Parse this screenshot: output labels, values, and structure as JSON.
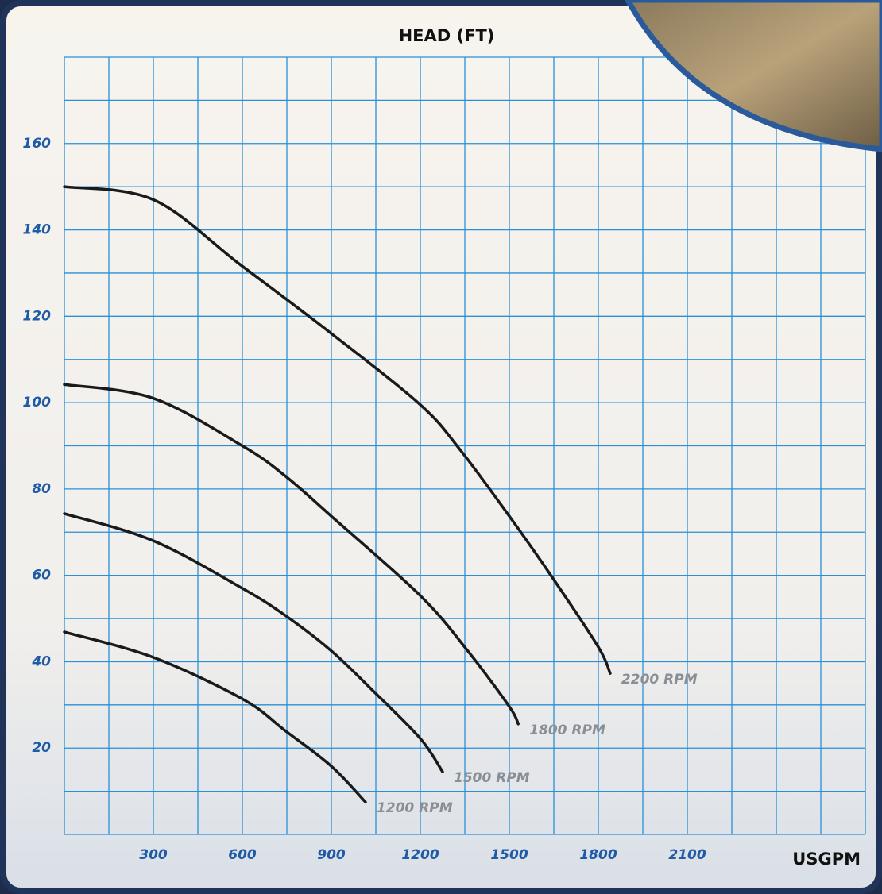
{
  "chart_data": {
    "type": "line",
    "title": "HEAD (FT)",
    "x_label": "USGPM",
    "xlim": [
      0,
      2700
    ],
    "ylim": [
      0,
      180
    ],
    "xticks": [
      300,
      600,
      900,
      1200,
      1500,
      1800,
      2100
    ],
    "yticks": [
      20,
      40,
      60,
      80,
      100,
      120,
      140,
      160
    ],
    "xgrid": [
      0,
      150,
      300,
      450,
      600,
      750,
      900,
      1050,
      1200,
      1350,
      1500,
      1650,
      1800,
      1950,
      2100,
      2250,
      2400,
      2550,
      2700
    ],
    "ygrid": [
      0,
      10,
      20,
      30,
      40,
      50,
      60,
      70,
      80,
      90,
      100,
      110,
      120,
      130,
      140,
      150,
      160,
      170,
      180
    ],
    "grid": true,
    "grid_color": "#2b8fd6",
    "series": [
      {
        "name": "2200 RPM",
        "color": "#1a1a1a",
        "x": [
          0,
          300,
          592,
          900,
          1200,
          1335,
          1500,
          1650,
          1800,
          1840
        ],
        "values": [
          150,
          147,
          132,
          116,
          99.5,
          89,
          73.7,
          59,
          43.4,
          37.3
        ]
      },
      {
        "name": "1800 RPM",
        "color": "#1a1a1a",
        "x": [
          0,
          300,
          600,
          745,
          900,
          1200,
          1360,
          1500,
          1530
        ],
        "values": [
          104.2,
          101,
          90,
          83,
          73.7,
          55.3,
          42.5,
          29.6,
          25.6
        ]
      },
      {
        "name": "1500 RPM",
        "color": "#1a1a1a",
        "x": [
          0,
          300,
          600,
          745,
          900,
          1040,
          1200,
          1275
        ],
        "values": [
          74.3,
          68,
          57,
          50.7,
          42.5,
          33.3,
          22.2,
          14.5
        ]
      },
      {
        "name": "1200 RPM",
        "color": "#1a1a1a",
        "x": [
          0,
          300,
          600,
          745,
          900,
          1015
        ],
        "values": [
          46.9,
          41,
          31.4,
          24,
          15.8,
          7.5
        ]
      }
    ]
  }
}
